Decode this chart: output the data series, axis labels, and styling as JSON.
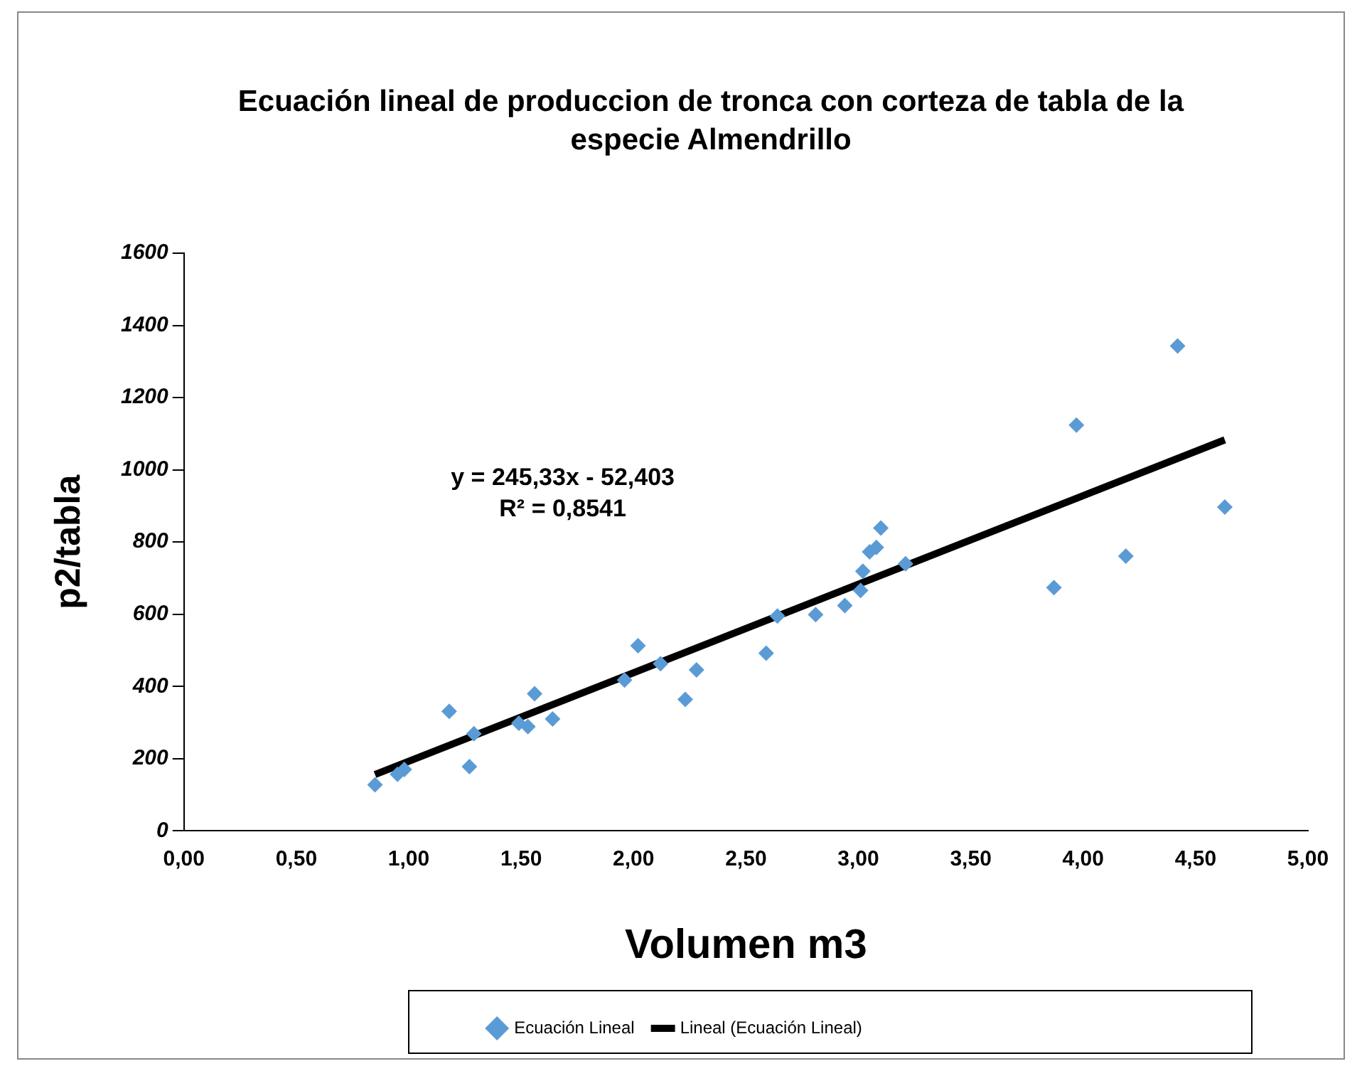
{
  "chart_data": {
    "type": "scatter",
    "title": "Ecuación lineal de produccion de tronca con corteza de tabla de la especie Almendrillo",
    "xlabel": "Volumen m3",
    "ylabel": "p2/tabla",
    "annotations": [
      "y = 245,33x - 52,403",
      "R² = 0,8541"
    ],
    "series": [
      {
        "name": "Ecuación Lineal",
        "color": "#5b9bd5",
        "x": [
          0.85,
          0.95,
          0.98,
          1.18,
          1.27,
          1.29,
          1.49,
          1.53,
          1.56,
          1.64,
          1.96,
          2.02,
          2.12,
          2.23,
          2.28,
          2.59,
          2.64,
          2.81,
          2.94,
          3.01,
          3.02,
          3.05,
          3.08,
          3.1,
          3.21,
          3.87,
          3.97,
          4.19,
          4.42,
          4.63
        ],
        "values": [
          128,
          157,
          170,
          331,
          178,
          269,
          298,
          289,
          380,
          310,
          418,
          513,
          463,
          364,
          446,
          492,
          595,
          599,
          624,
          666,
          719,
          773,
          785,
          839,
          740,
          674,
          1124,
          761,
          1343,
          897
        ]
      },
      {
        "name": "Lineal (Ecuación Lineal)",
        "type": "line",
        "marker": "none",
        "color": "#000000",
        "x": [
          0.85,
          4.63
        ],
        "values": [
          156,
          1083
        ]
      }
    ],
    "xlim": [
      0,
      5
    ],
    "xticks": [
      {
        "value": 0,
        "label": "0,00"
      },
      {
        "value": 0.5,
        "label": "0,50"
      },
      {
        "value": 1,
        "label": "1,00"
      },
      {
        "value": 1.5,
        "label": "1,50"
      },
      {
        "value": 2,
        "label": "2,00"
      },
      {
        "value": 2.5,
        "label": "2,50"
      },
      {
        "value": 3,
        "label": "3,00"
      },
      {
        "value": 3.5,
        "label": "3,50"
      },
      {
        "value": 4,
        "label": "4,00"
      },
      {
        "value": 4.5,
        "label": "4,50"
      },
      {
        "value": 5,
        "label": "5,00"
      }
    ],
    "ylim": [
      0,
      1600
    ],
    "yticks": [
      0,
      200,
      400,
      600,
      800,
      1000,
      1200,
      1400,
      1600
    ],
    "grid": false,
    "legend": "bottom",
    "marker": "diamond"
  }
}
